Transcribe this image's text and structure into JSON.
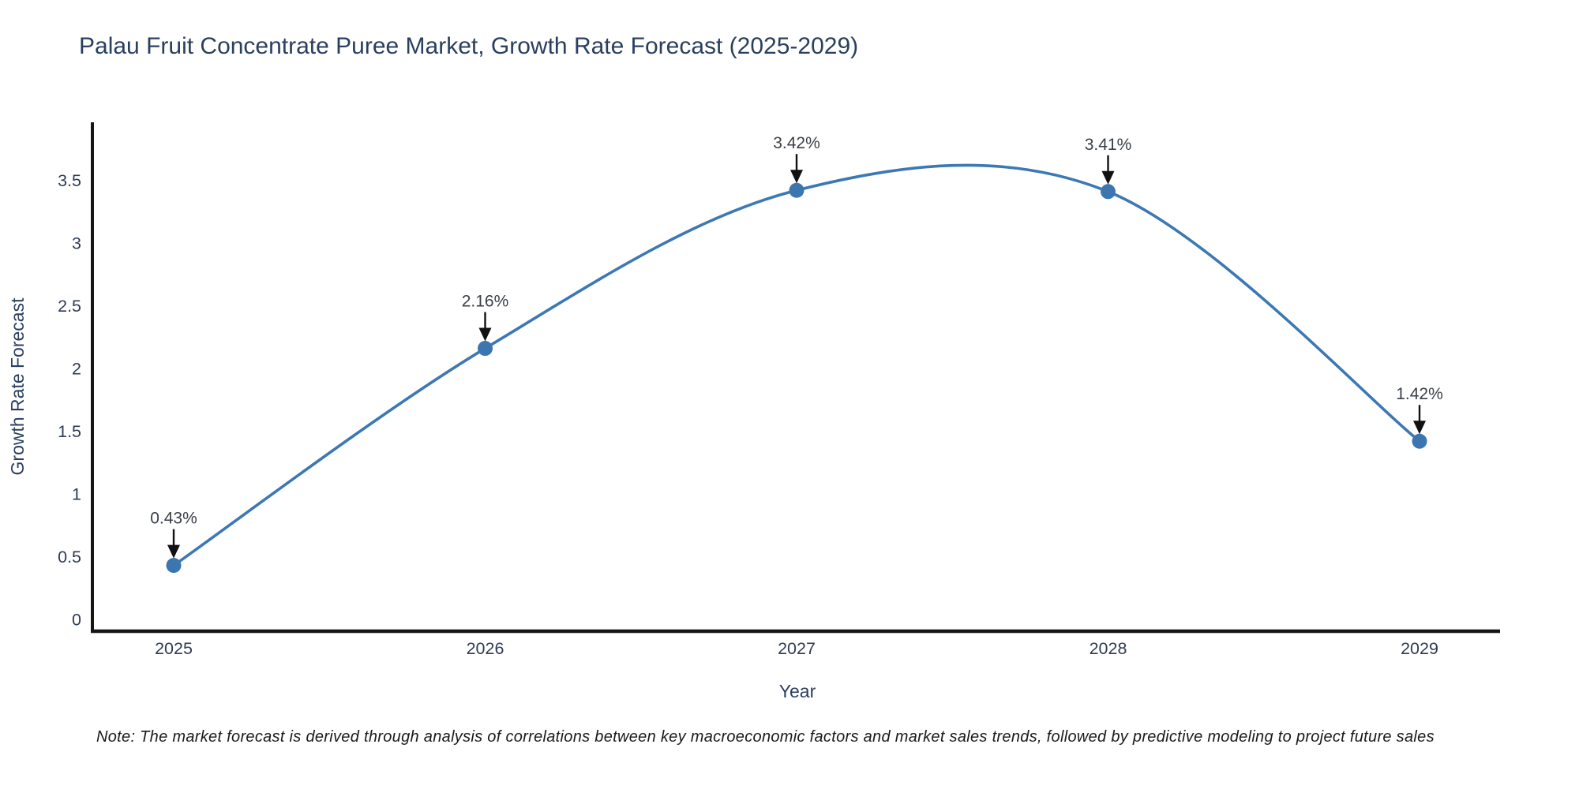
{
  "chart_data": {
    "type": "line",
    "title": "Palau Fruit Concentrate Puree Market, Growth Rate Forecast (2025-2029)",
    "xlabel": "Year",
    "ylabel": "Growth Rate Forecast",
    "categories": [
      "2025",
      "2026",
      "2027",
      "2028",
      "2029"
    ],
    "values": [
      0.43,
      2.16,
      3.42,
      3.41,
      1.42
    ],
    "point_labels": [
      "0.43%",
      "2.16%",
      "3.42%",
      "3.41%",
      "1.42%"
    ],
    "y_ticks": [
      "0",
      "0.5",
      "1",
      "1.5",
      "2",
      "2.5",
      "3",
      "3.5"
    ],
    "y_tick_values": [
      0,
      0.5,
      1,
      1.5,
      2,
      2.5,
      3,
      3.5
    ],
    "ylim": [
      0,
      3.95
    ],
    "line_shape": "spline",
    "grid": false,
    "legend_position": "none",
    "line_color": "#3c78b4",
    "marker_color": "#3b76b0",
    "arrow_color": "#111111",
    "axis_color": "#151515",
    "title_color": "#2a3f5f",
    "tick_color": "#2f3b52"
  },
  "note": {
    "text": "Note: The market forecast is derived through analysis of correlations between key macroeconomic factors and market sales trends, followed by predictive modeling to project future sales"
  }
}
